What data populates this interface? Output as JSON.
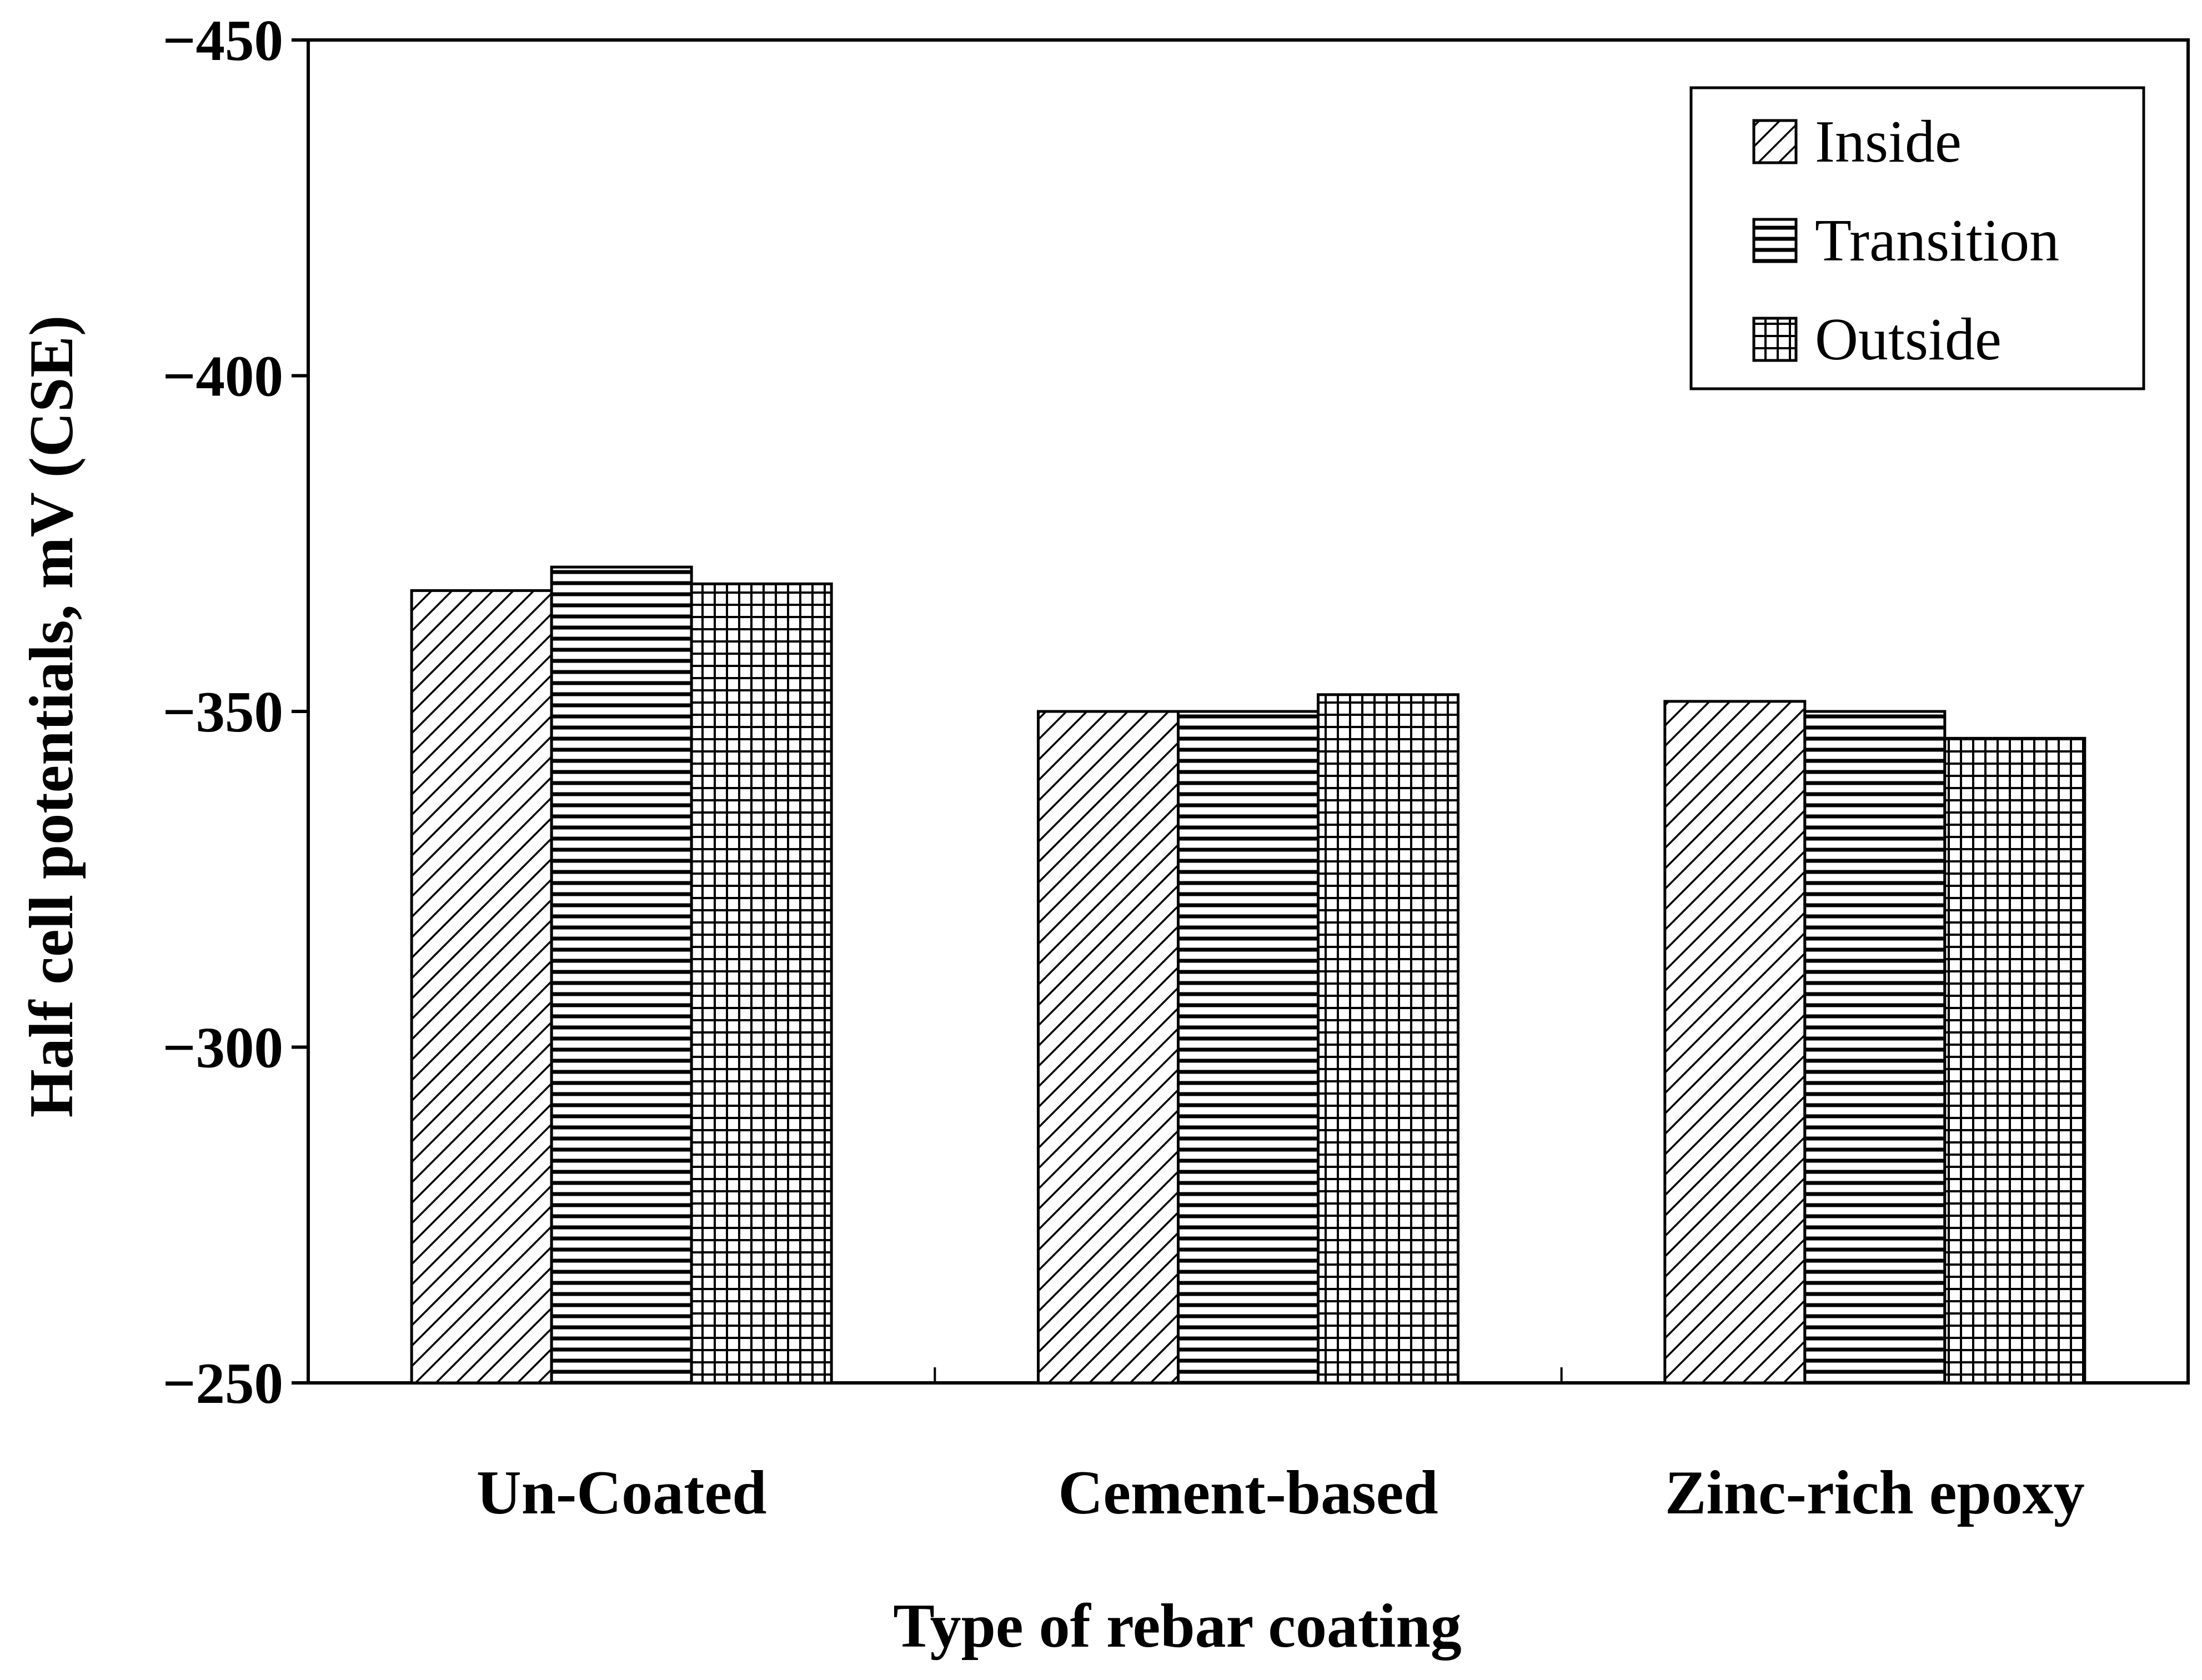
{
  "chart_data": {
    "type": "bar",
    "title": "",
    "xlabel": "Type of rebar coating",
    "ylabel": "Half cell potentials, mV (CSE)",
    "categories": [
      "Un-Coated",
      "Cement-based",
      "Zinc-rich epoxy"
    ],
    "series": [
      {
        "name": "Inside",
        "pattern": "diagonal",
        "values": [
          -368,
          -350,
          -351.5
        ]
      },
      {
        "name": "Transition",
        "pattern": "horizontal",
        "values": [
          -371.5,
          -350,
          -350
        ]
      },
      {
        "name": "Outside",
        "pattern": "grid",
        "values": [
          -369,
          -352.5,
          -346
        ]
      }
    ],
    "yticks": [
      -450,
      -400,
      -350,
      -300,
      -250
    ],
    "ylim": [
      -250,
      -450
    ],
    "legend_position": "top-right",
    "grid": false
  }
}
